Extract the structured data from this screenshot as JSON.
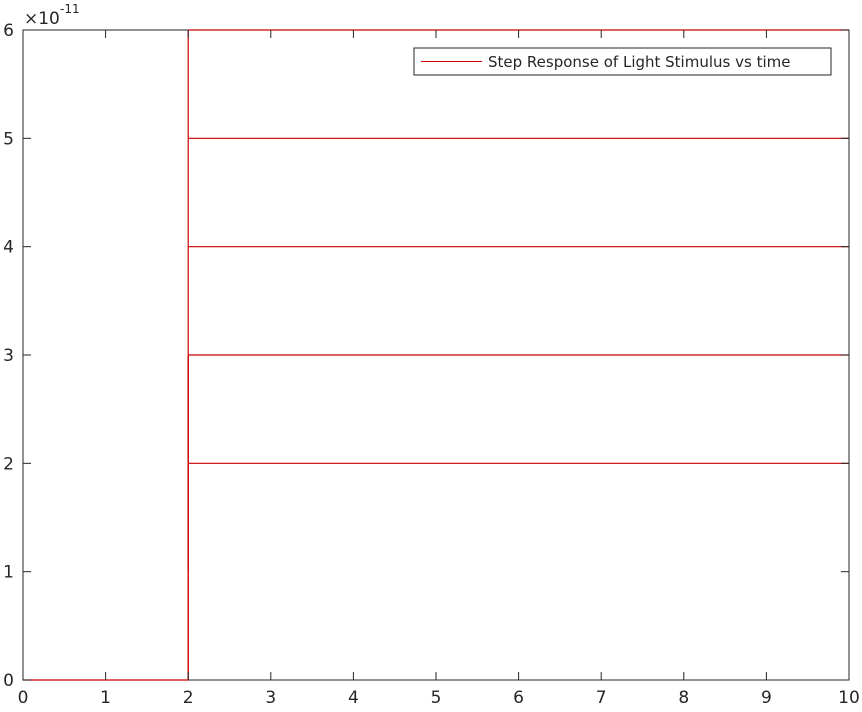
{
  "chart_data": {
    "type": "line",
    "title": "",
    "xlabel": "",
    "ylabel": "",
    "xlim": [
      0,
      10
    ],
    "ylim": [
      0,
      6
    ],
    "y_scale_factor_label": {
      "base": "×10",
      "exponent": "-11"
    },
    "x_ticks": [
      0,
      1,
      2,
      3,
      4,
      5,
      6,
      7,
      8,
      9,
      10
    ],
    "y_ticks": [
      0,
      1,
      2,
      3,
      4,
      5,
      6
    ],
    "grid": false,
    "legend": {
      "position": "top-right",
      "entries": [
        "Step Response of Light Stimulus vs time"
      ]
    },
    "series": [
      {
        "name": "Step Response of Light Stimulus vs time",
        "color": "#cc0000",
        "segments": [
          [
            [
              0,
              0
            ],
            [
              2,
              0
            ],
            [
              2,
              6
            ]
          ],
          [
            [
              2,
              0
            ],
            [
              2,
              3
            ]
          ],
          [
            [
              2,
              1
            ],
            [
              2,
              3
            ]
          ],
          [
            [
              2,
              2
            ],
            [
              10,
              2
            ]
          ],
          [
            [
              2,
              3
            ],
            [
              10,
              3
            ]
          ],
          [
            [
              2,
              4
            ],
            [
              10,
              4
            ]
          ],
          [
            [
              2,
              5
            ],
            [
              10,
              5
            ]
          ],
          [
            [
              2,
              6
            ],
            [
              10,
              6
            ]
          ]
        ]
      }
    ]
  },
  "colors": {
    "axis": "#262626",
    "series": "#cc0000",
    "background": "#ffffff"
  }
}
